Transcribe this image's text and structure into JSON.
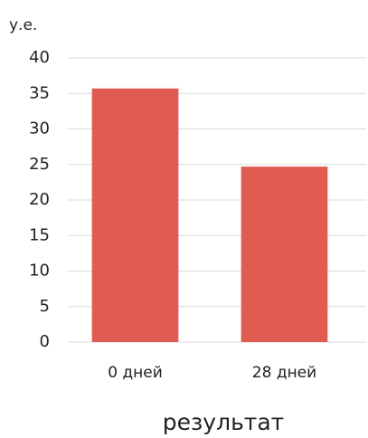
{
  "chart_data": {
    "type": "bar",
    "y_label": "у.е.",
    "x_label": "результат",
    "categories": [
      "0 дней",
      "28 дней"
    ],
    "values": [
      35.7,
      24.7
    ],
    "color": "#e05c50",
    "ylim": [
      0,
      40
    ],
    "yticks": [
      0,
      5,
      10,
      15,
      20,
      25,
      30,
      35,
      40
    ],
    "grid": true
  }
}
